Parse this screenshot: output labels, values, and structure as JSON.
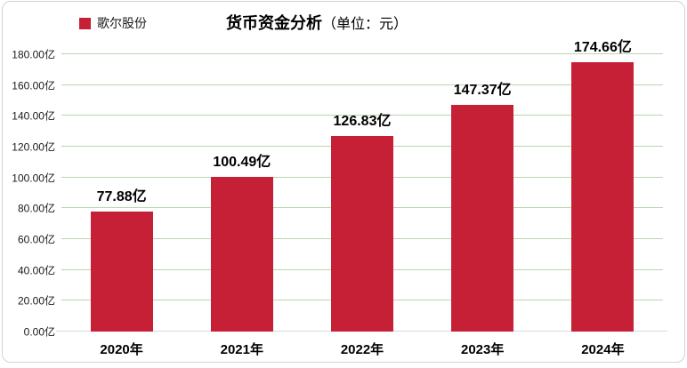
{
  "title": {
    "main": "货币资金分析",
    "unit": "（单位：元）"
  },
  "legend": {
    "label": "歌尔股份"
  },
  "colors": {
    "bar": "#c52035",
    "grid": "#bad6b1",
    "axis": "#d9d9d9",
    "frame_border": "#d2d2d2"
  },
  "chart_data": {
    "type": "bar",
    "title": "货币资金分析（单位：元）",
    "legend_entries": [
      "歌尔股份"
    ],
    "legend_position": "top-left",
    "categories": [
      "2020年",
      "2021年",
      "2022年",
      "2023年",
      "2024年"
    ],
    "values": [
      77.88,
      100.49,
      126.83,
      147.37,
      174.66
    ],
    "value_labels": [
      "77.88亿",
      "100.49亿",
      "126.83亿",
      "147.37亿",
      "174.66亿"
    ],
    "xlabel": "",
    "ylabel": "",
    "ylim": [
      0,
      180
    ],
    "ytick_step": 20,
    "yticks": [
      {
        "value": 0,
        "label": "0.00亿"
      },
      {
        "value": 20,
        "label": "20.00亿"
      },
      {
        "value": 40,
        "label": "40.00亿"
      },
      {
        "value": 60,
        "label": "60.00亿"
      },
      {
        "value": 80,
        "label": "80.00亿"
      },
      {
        "value": 100,
        "label": "100.00亿"
      },
      {
        "value": 120,
        "label": "120.00亿"
      },
      {
        "value": 140,
        "label": "140.00亿"
      },
      {
        "value": 160,
        "label": "160.00亿"
      },
      {
        "value": 180,
        "label": "180.00亿"
      }
    ],
    "grid": true
  }
}
